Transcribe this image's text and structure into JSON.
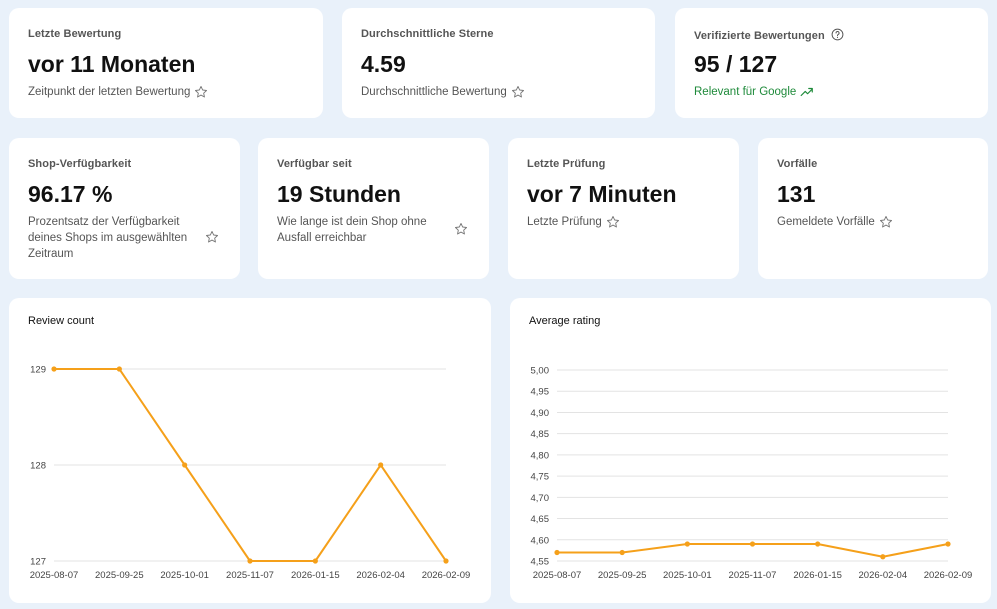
{
  "top_stats": [
    {
      "label": "Letzte Bewertung",
      "value": "vor 11 Monaten",
      "desc": "Zeitpunkt der letzten Bewertung",
      "icon": "star-outline-icon"
    },
    {
      "label": "Durchschnittliche Sterne",
      "value": "4.59",
      "desc": "Durchschnittliche Bewertung",
      "icon": "star-outline-icon"
    },
    {
      "label": "Verifizierte Bewertungen",
      "value": "95 / 127",
      "desc": "Relevant für Google",
      "icon": "trending-up-icon",
      "desc_color": "#1e8a3a"
    }
  ],
  "mid_stats": [
    {
      "label": "Shop-Verfügbarkeit",
      "value": "96.17 %",
      "desc": "Prozentsatz der Verfügbarkeit deines Shops im ausgewählten Zeitraum",
      "icon": "star-outline-icon"
    },
    {
      "label": "Verfügbar seit",
      "value": "19 Stunden",
      "desc": "Wie lange ist dein Shop ohne Ausfall erreichbar",
      "icon": "star-outline-icon"
    },
    {
      "label": "Letzte Prüfung",
      "value": "vor 7 Minuten",
      "desc": "Letzte Prüfung",
      "icon": "star-outline-icon"
    },
    {
      "label": "Vorfälle",
      "value": "131",
      "desc": "Gemeldete Vorfälle",
      "icon": "star-outline-icon"
    }
  ],
  "colors": {
    "accent": "#f5a01a",
    "background": "#e9f1fa",
    "green": "#1e8a3a"
  },
  "chart_data": [
    {
      "type": "line",
      "title": "Review count",
      "x": [
        "2025-08-07",
        "2025-09-25",
        "2025-10-01",
        "2025-11-07",
        "2026-01-15",
        "2026-02-04",
        "2026-02-09"
      ],
      "series": [
        {
          "values": [
            129,
            129,
            128,
            127,
            127,
            128,
            127
          ]
        }
      ],
      "yticks": [
        "127",
        "128",
        "129"
      ],
      "ylim": [
        127,
        129
      ],
      "grid": true
    },
    {
      "type": "line",
      "title": "Average rating",
      "x": [
        "2025-08-07",
        "2025-09-25",
        "2025-10-01",
        "2025-11-07",
        "2026-01-15",
        "2026-02-04",
        "2026-02-09"
      ],
      "series": [
        {
          "values": [
            4.57,
            4.57,
            4.59,
            4.59,
            4.59,
            4.56,
            4.59
          ]
        }
      ],
      "yticks": [
        "4,55",
        "4,60",
        "4,65",
        "4,70",
        "4,75",
        "4,80",
        "4,85",
        "4,90",
        "4,95",
        "5,00"
      ],
      "ylim": [
        4.55,
        5.0
      ],
      "grid": true
    }
  ]
}
